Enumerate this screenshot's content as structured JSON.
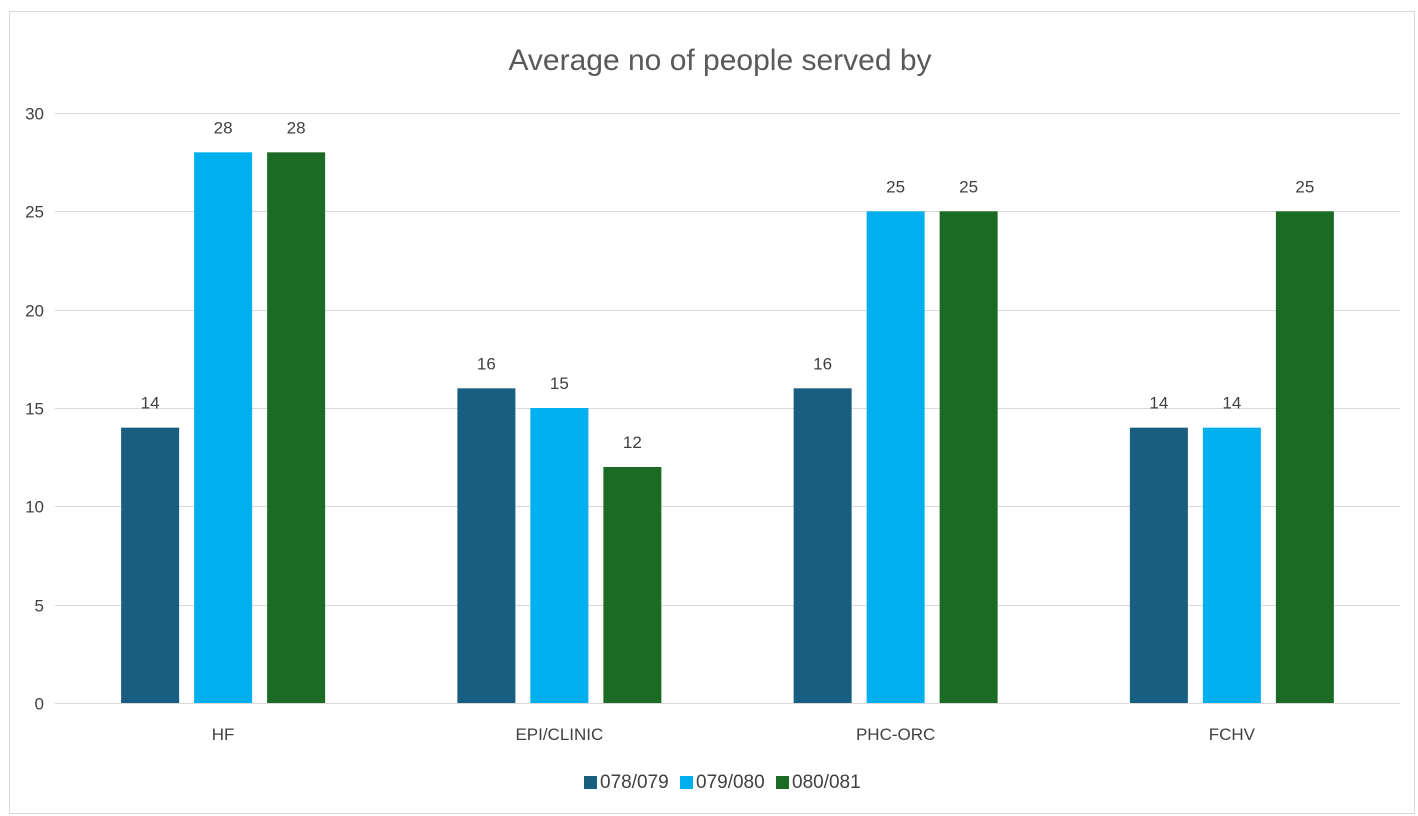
{
  "chart_data": {
    "type": "bar",
    "title": "Average no of people served by",
    "categories": [
      "HF",
      "EPI/CLINIC",
      "PHC-ORC",
      "FCHV"
    ],
    "series": [
      {
        "name": "078/079",
        "values": [
          14,
          16,
          16,
          14
        ],
        "color": "#175e80"
      },
      {
        "name": "079/080",
        "values": [
          28,
          15,
          25,
          14
        ],
        "color": "#00b0ee"
      },
      {
        "name": "080/081",
        "values": [
          28,
          12,
          25,
          25
        ],
        "color": "#1b6b24"
      }
    ],
    "ylim": [
      0,
      30
    ],
    "yticks": [
      0,
      5,
      10,
      15,
      20,
      25,
      30
    ],
    "grid": true,
    "gridColor": "#d9d9d9",
    "legend": "bottom",
    "data_labels": true
  }
}
